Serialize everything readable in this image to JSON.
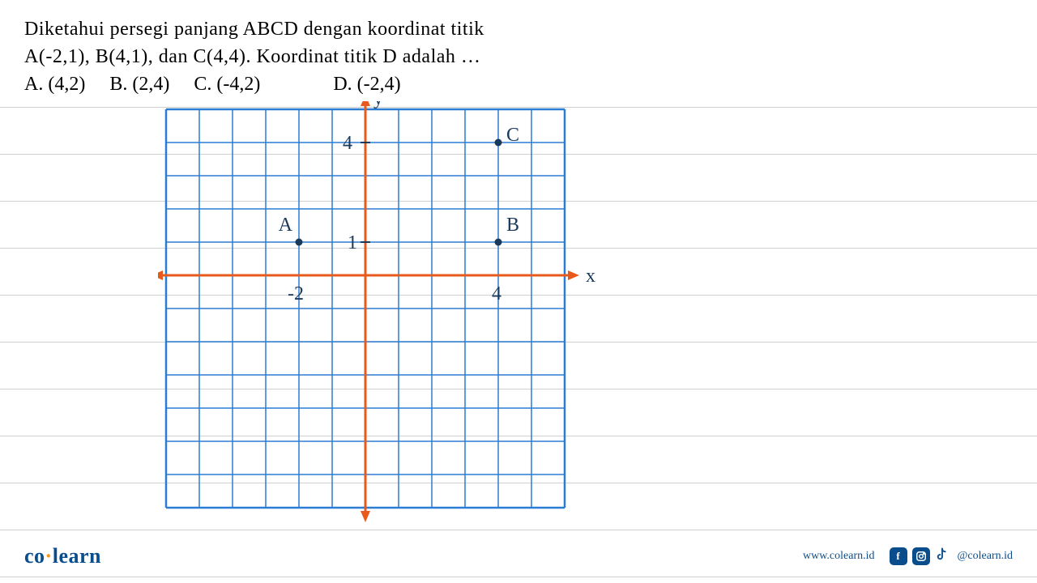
{
  "question": {
    "line1": "Diketahui persegi panjang ABCD dengan koordinat titik",
    "line2": "A(-2,1), B(4,1), dan C(4,4). Koordinat titik D adalah …",
    "optA": "A.  (4,2)",
    "optB": "B.  (2,4)",
    "optC": "C.  (-4,2)",
    "optD": "D.  (-2,4)"
  },
  "graph": {
    "grid_color": "#2b7cd3",
    "axis_color": "#e8591c",
    "hand_color": "#1a3a5c",
    "cell": 41,
    "xcells": 12,
    "ycells": 12,
    "origin_col": 6,
    "origin_row": 5,
    "labels": {
      "y": "y",
      "x": "x",
      "A": "A",
      "B": "B",
      "C": "C",
      "tick4y": "4",
      "tick1y": "1",
      "tickm2x": "-2",
      "tick4x": "4"
    },
    "points": {
      "A": {
        "x": -2,
        "y": 1
      },
      "B": {
        "x": 4,
        "y": 1
      },
      "C": {
        "x": 4,
        "y": 4
      }
    }
  },
  "footer": {
    "logo_co": "co",
    "logo_learn": "learn",
    "website": "www.colearn.id",
    "handle": "@colearn.id"
  },
  "paper": {
    "line_color": "#d0d0d0",
    "line_spacing": 58,
    "line_start": 132
  }
}
